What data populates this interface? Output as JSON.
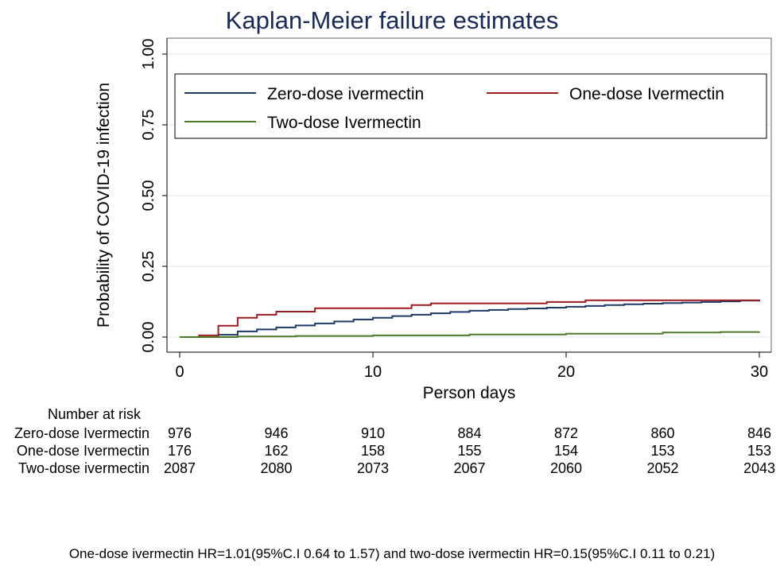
{
  "chart_data": {
    "type": "line",
    "title": "Kaplan-Meier failure estimates",
    "xlabel": "Person days",
    "ylabel": "Probability of COVID-19 infection",
    "xlim": [
      0,
      30
    ],
    "ylim": [
      0,
      1
    ],
    "x_ticks": [
      "0",
      "10",
      "20",
      "30"
    ],
    "y_ticks": [
      "0.00",
      "0.25",
      "0.50",
      "0.75",
      "1.00"
    ],
    "grid": true,
    "legend_position": "top",
    "series": [
      {
        "name": "Zero-dose ivermectin",
        "color": "#1f3a68",
        "points": [
          [
            0,
            0
          ],
          [
            2,
            0.008
          ],
          [
            3,
            0.02
          ],
          [
            4,
            0.027
          ],
          [
            5,
            0.034
          ],
          [
            6,
            0.041
          ],
          [
            7,
            0.048
          ],
          [
            8,
            0.055
          ],
          [
            9,
            0.062
          ],
          [
            10,
            0.068
          ],
          [
            11,
            0.074
          ],
          [
            12,
            0.079
          ],
          [
            13,
            0.084
          ],
          [
            14,
            0.089
          ],
          [
            15,
            0.093
          ],
          [
            16,
            0.096
          ],
          [
            17,
            0.099
          ],
          [
            18,
            0.101
          ],
          [
            19,
            0.104
          ],
          [
            20,
            0.107
          ],
          [
            21,
            0.11
          ],
          [
            22,
            0.113
          ],
          [
            23,
            0.116
          ],
          [
            24,
            0.118
          ],
          [
            25,
            0.12
          ],
          [
            26,
            0.122
          ],
          [
            27,
            0.124
          ],
          [
            28,
            0.126
          ],
          [
            29,
            0.129
          ],
          [
            30,
            0.132
          ]
        ]
      },
      {
        "name": "One-dose Ivermectin",
        "color": "#9b1c20",
        "points": [
          [
            0,
            0
          ],
          [
            1,
            0.006
          ],
          [
            2,
            0.04
          ],
          [
            3,
            0.068
          ],
          [
            4,
            0.079
          ],
          [
            5,
            0.09
          ],
          [
            7,
            0.102
          ],
          [
            12,
            0.113
          ],
          [
            13,
            0.119
          ],
          [
            19,
            0.124
          ],
          [
            21,
            0.13
          ],
          [
            30,
            0.13
          ]
        ]
      },
      {
        "name": "Two-dose Ivermectin",
        "color": "#4f7a28",
        "points": [
          [
            0,
            0
          ],
          [
            3,
            0.002
          ],
          [
            6,
            0.004
          ],
          [
            10,
            0.006
          ],
          [
            15,
            0.009
          ],
          [
            20,
            0.012
          ],
          [
            25,
            0.016
          ],
          [
            28,
            0.018
          ],
          [
            30,
            0.019
          ]
        ]
      }
    ]
  },
  "risk_table": {
    "heading": "Number at risk",
    "rows": [
      {
        "label": "Zero-dose Ivermectin",
        "values": [
          "976",
          "946",
          "910",
          "884",
          "872",
          "860",
          "846"
        ]
      },
      {
        "label": "One-dose Ivermectin",
        "values": [
          "176",
          "162",
          "158",
          "155",
          "154",
          "153",
          "153"
        ]
      },
      {
        "label": "Two-dose ivermectin",
        "values": [
          "2087",
          "2080",
          "2073",
          "2067",
          "2060",
          "2052",
          "2043"
        ]
      }
    ]
  },
  "footnote": "One-dose ivermectin HR=1.01(95%C.I 0.64 to 1.57) and two-dose ivermectin HR=0.15(95%C.I 0.11 to 0.21)"
}
